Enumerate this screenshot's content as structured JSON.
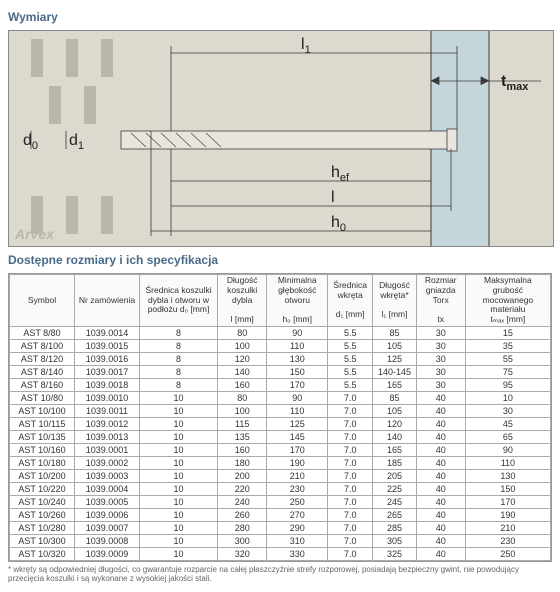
{
  "titles": {
    "dimensions": "Wymiary",
    "spec": "Dostępne rozmiary i ich specyfikacja"
  },
  "diagram": {
    "l1": "l",
    "tmax": "t",
    "d0": "d",
    "d1": "d",
    "hef": "h",
    "l": "l",
    "h0": "h",
    "brand": "Arvex",
    "sub1": "1",
    "sub0": "0",
    "subef": "ef",
    "submax": "max"
  },
  "columns": [
    "Symbol",
    "Nr zamówienia",
    "Średnica koszulki dybla i otworu w podłożu d₀ [mm]",
    "Długość koszulki dybla\n\nl [mm]",
    "Minimalna głębokość otworu\n\nh₀ [mm]",
    "Średnica wkręta\n\nd₁ [mm]",
    "Długość wkręta*\n\nl₁ [mm]",
    "Rozmiar gniazda Torx\n\ntx",
    "Maksymalna grubość mocowanego materiału\ntₘₐₓ [mm]"
  ],
  "rows": [
    [
      "AST 8/80",
      "1039.0014",
      "8",
      "80",
      "90",
      "5.5",
      "85",
      "30",
      "15"
    ],
    [
      "AST 8/100",
      "1039.0015",
      "8",
      "100",
      "110",
      "5.5",
      "105",
      "30",
      "35"
    ],
    [
      "AST 8/120",
      "1039.0016",
      "8",
      "120",
      "130",
      "5.5",
      "125",
      "30",
      "55"
    ],
    [
      "AST 8/140",
      "1039.0017",
      "8",
      "140",
      "150",
      "5.5",
      "140-145",
      "30",
      "75"
    ],
    [
      "AST 8/160",
      "1039.0018",
      "8",
      "160",
      "170",
      "5.5",
      "165",
      "30",
      "95"
    ],
    [
      "AST 10/80",
      "1039.0010",
      "10",
      "80",
      "90",
      "7.0",
      "85",
      "40",
      "10"
    ],
    [
      "AST 10/100",
      "1039.0011",
      "10",
      "100",
      "110",
      "7.0",
      "105",
      "40",
      "30"
    ],
    [
      "AST 10/115",
      "1039.0012",
      "10",
      "115",
      "125",
      "7.0",
      "120",
      "40",
      "45"
    ],
    [
      "AST 10/135",
      "1039.0013",
      "10",
      "135",
      "145",
      "7.0",
      "140",
      "40",
      "65"
    ],
    [
      "AST 10/160",
      "1039.0001",
      "10",
      "160",
      "170",
      "7.0",
      "165",
      "40",
      "90"
    ],
    [
      "AST 10/180",
      "1039.0002",
      "10",
      "180",
      "190",
      "7.0",
      "185",
      "40",
      "110"
    ],
    [
      "AST 10/200",
      "1039.0003",
      "10",
      "200",
      "210",
      "7.0",
      "205",
      "40",
      "130"
    ],
    [
      "AST 10/220",
      "1039.0004",
      "10",
      "220",
      "230",
      "7.0",
      "225",
      "40",
      "150"
    ],
    [
      "AST 10/240",
      "1039.0005",
      "10",
      "240",
      "250",
      "7.0",
      "245",
      "40",
      "170"
    ],
    [
      "AST 10/260",
      "1039.0006",
      "10",
      "260",
      "270",
      "7.0",
      "265",
      "40",
      "190"
    ],
    [
      "AST 10/280",
      "1039.0007",
      "10",
      "280",
      "290",
      "7.0",
      "285",
      "40",
      "210"
    ],
    [
      "AST 10/300",
      "1039.0008",
      "10",
      "300",
      "310",
      "7.0",
      "305",
      "40",
      "230"
    ],
    [
      "AST 10/320",
      "1039.0009",
      "10",
      "320",
      "330",
      "7.0",
      "325",
      "40",
      "250"
    ]
  ],
  "footnote": "* wkręty są odpowiedniej długości, co gwarantuje rozparcie na całej płaszczyźnie strefy rozporowej, posiadają bezpieczny gwint, nie powodujący przecięcia koszulki i są wykonane z wysokiej jakości stali.",
  "colors": {
    "bg_wall": "#dcd9ce",
    "slot": "#bab7a8",
    "concrete": "#c5d6db",
    "line": "#3a3a3a",
    "anchor_fill": "#e8e6dc"
  }
}
